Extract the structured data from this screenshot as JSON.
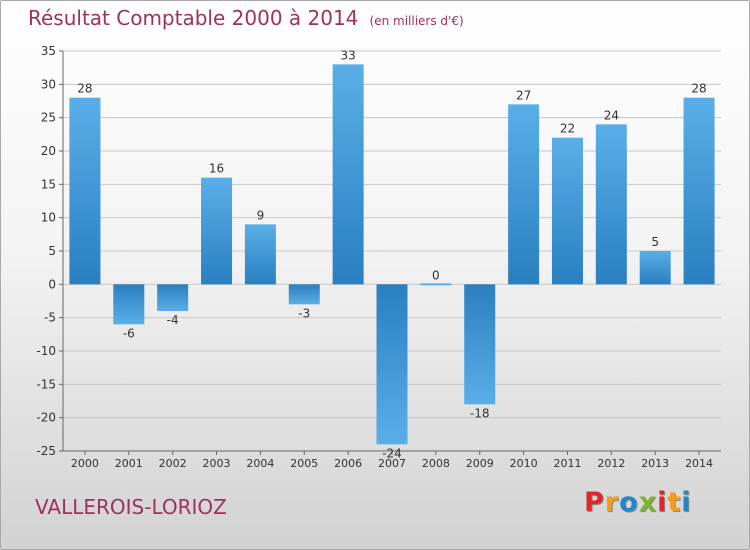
{
  "title": "Résultat Comptable 2000 à 2014",
  "unit_note": "(en milliers d'€)",
  "commune": "VALLEROIS-LORIOZ",
  "brand": "Proxiti",
  "brand_colors": [
    "#e2242b",
    "#f39c18",
    "#1e88c8",
    "#7ab531",
    "#e2242b",
    "#f39c18",
    "#1e88c8"
  ],
  "colors": {
    "title": "#a0305e",
    "bar_dark": "#2a7fc0",
    "bar_light": "#5aaee8"
  },
  "chart_data": {
    "type": "bar",
    "categories": [
      "2000",
      "2001",
      "2002",
      "2003",
      "2004",
      "2005",
      "2006",
      "2007",
      "2008",
      "2009",
      "2010",
      "2011",
      "2012",
      "2013",
      "2014"
    ],
    "values": [
      28,
      -6,
      -4,
      16,
      9,
      -3,
      33,
      -24,
      0,
      -18,
      27,
      22,
      24,
      5,
      28
    ],
    "ylim": [
      -25,
      35
    ],
    "yticks": [
      35,
      30,
      25,
      20,
      15,
      10,
      5,
      0,
      -5,
      -10,
      -15,
      -20,
      -25
    ],
    "grid": true,
    "legend": "none"
  }
}
